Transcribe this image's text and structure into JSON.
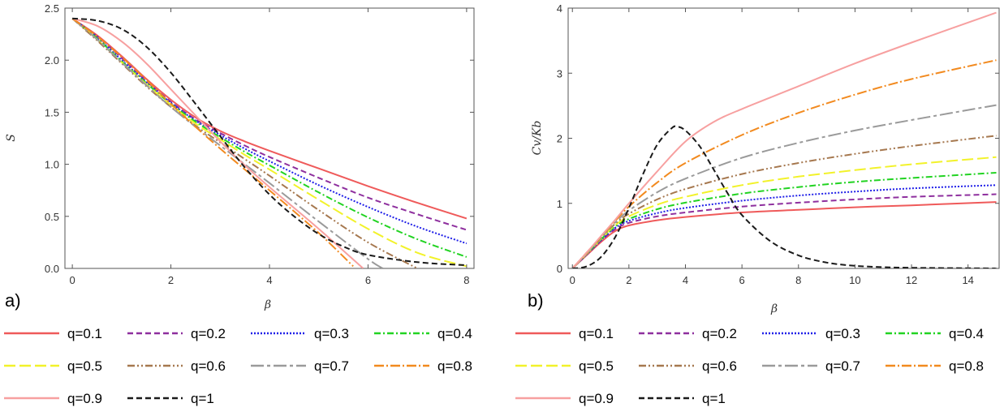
{
  "chart_data": [
    {
      "type": "line",
      "panel_label": "a)",
      "xlabel": "β",
      "ylabel": "S",
      "xlim": [
        -0.15,
        8.15
      ],
      "ylim": [
        0,
        2.5
      ],
      "xticks": [
        "0",
        "2",
        "4",
        "6",
        "8"
      ],
      "yticks": [
        "0.0",
        "0.5",
        "1.0",
        "1.5",
        "2.0",
        "2.5"
      ],
      "series": [
        {
          "name": "q=0.1",
          "x": [
            0,
            0.5,
            1,
            1.5,
            2,
            2.5,
            3,
            3.5,
            4,
            5,
            6,
            7,
            8
          ],
          "values": [
            2.4,
            2.24,
            2.04,
            1.82,
            1.62,
            1.45,
            1.32,
            1.22,
            1.13,
            0.96,
            0.79,
            0.63,
            0.48
          ]
        },
        {
          "name": "q=0.2",
          "x": [
            0,
            0.5,
            1,
            1.5,
            2,
            2.5,
            3,
            3.5,
            4,
            5,
            6,
            7,
            8
          ],
          "values": [
            2.4,
            2.23,
            2.02,
            1.8,
            1.6,
            1.43,
            1.3,
            1.18,
            1.07,
            0.87,
            0.68,
            0.52,
            0.37
          ]
        },
        {
          "name": "q=0.3",
          "x": [
            0,
            0.5,
            1,
            1.5,
            2,
            2.5,
            3,
            3.5,
            4,
            5,
            6,
            7,
            8
          ],
          "values": [
            2.4,
            2.22,
            2.0,
            1.79,
            1.59,
            1.42,
            1.28,
            1.15,
            1.03,
            0.8,
            0.59,
            0.4,
            0.24
          ]
        },
        {
          "name": "q=0.4",
          "x": [
            0,
            0.5,
            1,
            1.5,
            2,
            2.5,
            3,
            3.5,
            4,
            5,
            6,
            7,
            8
          ],
          "values": [
            2.4,
            2.21,
            1.99,
            1.78,
            1.58,
            1.41,
            1.26,
            1.12,
            0.99,
            0.73,
            0.49,
            0.28,
            0.11
          ]
        },
        {
          "name": "q=0.5",
          "x": [
            0,
            0.5,
            1,
            1.5,
            2,
            2.5,
            3,
            3.5,
            4,
            5,
            6,
            7,
            8
          ],
          "values": [
            2.4,
            2.2,
            1.98,
            1.77,
            1.57,
            1.39,
            1.24,
            1.09,
            0.95,
            0.66,
            0.38,
            0.15,
            0.02
          ]
        },
        {
          "name": "q=0.6",
          "x": [
            0,
            0.5,
            1,
            1.5,
            2,
            2.5,
            3,
            3.5,
            4,
            5,
            6,
            7
          ],
          "values": [
            2.4,
            2.19,
            1.97,
            1.75,
            1.55,
            1.37,
            1.21,
            1.05,
            0.89,
            0.56,
            0.25,
            0.0
          ]
        },
        {
          "name": "q=0.7",
          "x": [
            0,
            0.5,
            1,
            1.5,
            2,
            2.5,
            3,
            3.5,
            4,
            5,
            6,
            6.3
          ],
          "values": [
            2.4,
            2.2,
            1.98,
            1.76,
            1.55,
            1.36,
            1.18,
            1.0,
            0.82,
            0.45,
            0.09,
            0.0
          ]
        },
        {
          "name": "q=0.8",
          "x": [
            0,
            0.5,
            1,
            1.5,
            2,
            2.5,
            3,
            3.5,
            4,
            5,
            5.7
          ],
          "values": [
            2.4,
            2.23,
            2.03,
            1.81,
            1.58,
            1.36,
            1.15,
            0.95,
            0.75,
            0.34,
            0.02
          ]
        },
        {
          "name": "q=0.9",
          "x": [
            0,
            0.5,
            1,
            1.5,
            2,
            2.5,
            3,
            3.5,
            4,
            5,
            5.9
          ],
          "values": [
            2.4,
            2.33,
            2.18,
            1.97,
            1.72,
            1.47,
            1.22,
            0.99,
            0.78,
            0.38,
            0.0
          ]
        },
        {
          "name": "q=1",
          "x": [
            0,
            0.5,
            1,
            1.5,
            2,
            2.5,
            3,
            3.5,
            4,
            4.5,
            5,
            5.5,
            6,
            7,
            8
          ],
          "values": [
            2.4,
            2.38,
            2.3,
            2.13,
            1.88,
            1.58,
            1.27,
            0.97,
            0.71,
            0.5,
            0.33,
            0.21,
            0.13,
            0.06,
            0.03
          ]
        }
      ]
    },
    {
      "type": "line",
      "panel_label": "b)",
      "xlabel": "β",
      "ylabel": "Cv/Kb",
      "xlim": [
        -0.15,
        15.1
      ],
      "ylim": [
        0,
        4
      ],
      "xticks": [
        "0",
        "2",
        "4",
        "6",
        "8",
        "10",
        "12",
        "14"
      ],
      "yticks": [
        "0",
        "1",
        "2",
        "3",
        "4"
      ],
      "series": [
        {
          "name": "q=0.1",
          "x": [
            0,
            0.5,
            1,
            1.5,
            2,
            3,
            4,
            6,
            8,
            10,
            12,
            15
          ],
          "values": [
            0,
            0.2,
            0.4,
            0.57,
            0.66,
            0.74,
            0.79,
            0.86,
            0.9,
            0.94,
            0.97,
            1.02
          ]
        },
        {
          "name": "q=0.2",
          "x": [
            0,
            0.5,
            1,
            1.5,
            2,
            3,
            4,
            6,
            8,
            10,
            12,
            15
          ],
          "values": [
            0,
            0.21,
            0.42,
            0.6,
            0.7,
            0.8,
            0.86,
            0.95,
            1.01,
            1.06,
            1.1,
            1.14
          ]
        },
        {
          "name": "q=0.3",
          "x": [
            0,
            0.5,
            1,
            1.5,
            2,
            3,
            4,
            6,
            8,
            10,
            12,
            15
          ],
          "values": [
            0,
            0.21,
            0.43,
            0.62,
            0.73,
            0.85,
            0.93,
            1.04,
            1.12,
            1.18,
            1.23,
            1.28
          ]
        },
        {
          "name": "q=0.4",
          "x": [
            0,
            0.5,
            1,
            1.5,
            2,
            3,
            4,
            6,
            8,
            10,
            12,
            15
          ],
          "values": [
            0,
            0.22,
            0.44,
            0.64,
            0.76,
            0.91,
            1.01,
            1.15,
            1.25,
            1.33,
            1.39,
            1.47
          ]
        },
        {
          "name": "q=0.5",
          "x": [
            0,
            0.5,
            1,
            1.5,
            2,
            3,
            4,
            6,
            8,
            10,
            12,
            15
          ],
          "values": [
            0,
            0.22,
            0.45,
            0.66,
            0.8,
            0.98,
            1.1,
            1.28,
            1.41,
            1.51,
            1.6,
            1.71
          ]
        },
        {
          "name": "q=0.6",
          "x": [
            0,
            0.5,
            1,
            1.5,
            2,
            3,
            4,
            6,
            8,
            10,
            12,
            15
          ],
          "values": [
            0,
            0.23,
            0.46,
            0.68,
            0.84,
            1.06,
            1.22,
            1.45,
            1.62,
            1.76,
            1.88,
            2.04
          ]
        },
        {
          "name": "q=0.7",
          "x": [
            0,
            0.5,
            1,
            1.5,
            2,
            3,
            4,
            6,
            8,
            10,
            12,
            15
          ],
          "values": [
            0,
            0.23,
            0.47,
            0.7,
            0.89,
            1.17,
            1.38,
            1.7,
            1.93,
            2.12,
            2.28,
            2.51
          ]
        },
        {
          "name": "q=0.8",
          "x": [
            0,
            0.5,
            1,
            1.5,
            2,
            3,
            4,
            6,
            8,
            10,
            12,
            15
          ],
          "values": [
            0,
            0.24,
            0.48,
            0.72,
            0.95,
            1.32,
            1.62,
            2.05,
            2.39,
            2.67,
            2.91,
            3.2
          ]
        },
        {
          "name": "q=0.9",
          "x": [
            0,
            0.5,
            1,
            1.5,
            2,
            3,
            4,
            5,
            6,
            8,
            10,
            12,
            15
          ],
          "values": [
            0,
            0.24,
            0.49,
            0.74,
            1.0,
            1.49,
            1.95,
            2.25,
            2.45,
            2.8,
            3.15,
            3.47,
            3.93
          ]
        },
        {
          "name": "q=1",
          "x": [
            0,
            0.5,
            1,
            1.5,
            2,
            2.5,
            3,
            3.5,
            3.7,
            4,
            4.5,
            5,
            5.5,
            6,
            7,
            8,
            9,
            10,
            11,
            12,
            15
          ],
          "values": [
            0,
            0.03,
            0.17,
            0.47,
            0.93,
            1.45,
            1.9,
            2.15,
            2.18,
            2.12,
            1.88,
            1.52,
            1.15,
            0.82,
            0.42,
            0.2,
            0.09,
            0.04,
            0.02,
            0.01,
            0.0
          ]
        }
      ]
    }
  ],
  "legend_entries": [
    "q=0.1",
    "q=0.2",
    "q=0.3",
    "q=0.4",
    "q=0.5",
    "q=0.6",
    "q=0.7",
    "q=0.8",
    "q=0.9",
    "q=1"
  ],
  "colors": {
    "q=0.1": "#ef5a5a",
    "q=0.2": "#8e2f9e",
    "q=0.3": "#2020e8",
    "q=0.4": "#22d322",
    "q=0.5": "#f2f22a",
    "q=0.6": "#a6784f",
    "q=0.7": "#9a9a9a",
    "q=0.8": "#f28a1f",
    "q=0.9": "#f7a0a0",
    "q=1": "#1a1a1a"
  },
  "dash_styles": {
    "q=0.1": "",
    "q=0.2": "7,4",
    "q=0.3": "2,2",
    "q=0.4": "8,3,2,3",
    "q=0.5": "14,5",
    "q=0.6": "9,3,2,3,2,3",
    "q=0.7": "16,4,4,4",
    "q=0.8": "12,3,2,3",
    "q=0.9": "",
    "q=1": "7,4"
  }
}
